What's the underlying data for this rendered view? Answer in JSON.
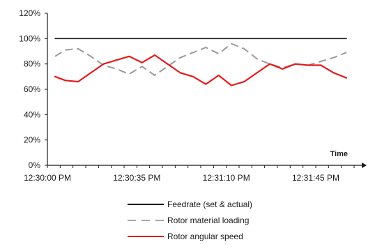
{
  "chart_data": {
    "type": "line",
    "title": "",
    "xlabel": "Time",
    "ylabel": "",
    "ylim": [
      0,
      120
    ],
    "y_ticks": [
      0,
      20,
      40,
      60,
      80,
      100,
      120
    ],
    "y_tick_labels": [
      "0%",
      "20%",
      "40%",
      "60%",
      "80%",
      "100%",
      "120%"
    ],
    "x_start_seconds": 0,
    "x_end_seconds": 120,
    "x_tick_labels": [
      {
        "t": 0,
        "label": "12:30:00 PM"
      },
      {
        "t": 35,
        "label": "12:30:35 PM"
      },
      {
        "t": 70,
        "label": "12:31:10 PM"
      },
      {
        "t": 105,
        "label": "12:31:45 PM"
      }
    ],
    "grid": false,
    "legend_position": "bottom",
    "series": [
      {
        "name": "Feedrate (set & actual)",
        "color": "#1a1a1a",
        "dash": "solid",
        "x": [
          3,
          117
        ],
        "y": [
          100,
          100
        ]
      },
      {
        "name": "Rotor material loading",
        "color": "#9a9a9a",
        "dash": "dashed",
        "x": [
          3,
          7,
          12,
          17,
          22,
          27,
          32,
          37,
          42,
          47,
          52,
          57,
          62,
          67,
          72,
          77,
          82,
          87,
          92,
          97,
          102,
          107,
          112,
          117
        ],
        "y": [
          86,
          91,
          92,
          86,
          79,
          76,
          72,
          78,
          71,
          78,
          85,
          89,
          93,
          88,
          96,
          92,
          84,
          80,
          77,
          80,
          79,
          82,
          85,
          89
        ]
      },
      {
        "name": "Rotor angular speed",
        "color": "#e41b1b",
        "dash": "solid",
        "x": [
          3,
          7,
          12,
          17,
          22,
          27,
          32,
          37,
          42,
          47,
          52,
          57,
          62,
          67,
          72,
          77,
          82,
          87,
          92,
          97,
          102,
          107,
          112,
          117
        ],
        "y": [
          70,
          67,
          66,
          73,
          80,
          83,
          86,
          81,
          87,
          80,
          73,
          70,
          64,
          71,
          63,
          66,
          73,
          80,
          76,
          80,
          79,
          79,
          73,
          69
        ]
      }
    ]
  }
}
